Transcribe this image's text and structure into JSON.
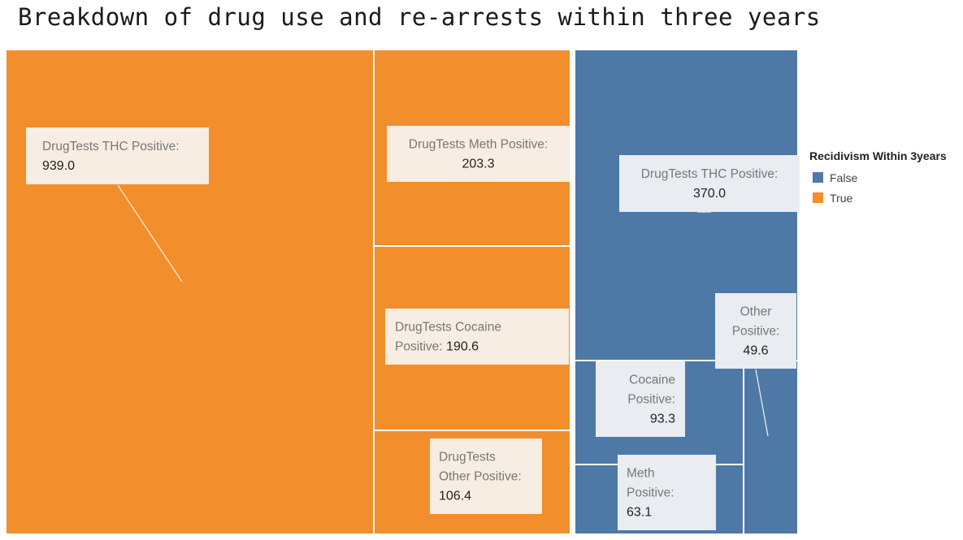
{
  "title": "Breakdown of drug use and re-arrests within three years",
  "legend": {
    "title": "Recidivism Within 3years",
    "items": [
      {
        "label": "False",
        "color": "#4e79a7"
      },
      {
        "label": "True",
        "color": "#f28e2b"
      }
    ]
  },
  "chart_data": {
    "type": "treemap",
    "title": "Breakdown of drug use and re-arrests within three years",
    "groups": [
      {
        "name": "True",
        "color": "#f28e2b",
        "items": [
          {
            "label": "DrugTests THC Positive:",
            "value": 939.0
          },
          {
            "label": "DrugTests Meth Positive:",
            "value": 203.3
          },
          {
            "label": "DrugTests Cocaine Positive:",
            "value": 190.6
          },
          {
            "label": "DrugTests Other Positive:",
            "value": 106.4
          }
        ]
      },
      {
        "name": "False",
        "color": "#4e79a7",
        "items": [
          {
            "label": "DrugTests THC Positive:",
            "value": 370.0
          },
          {
            "label": "Other Positive:",
            "value": 49.6
          },
          {
            "label": "Cocaine Positive:",
            "value": 93.3
          },
          {
            "label": "Meth Positive:",
            "value": 63.1
          }
        ]
      }
    ]
  }
}
